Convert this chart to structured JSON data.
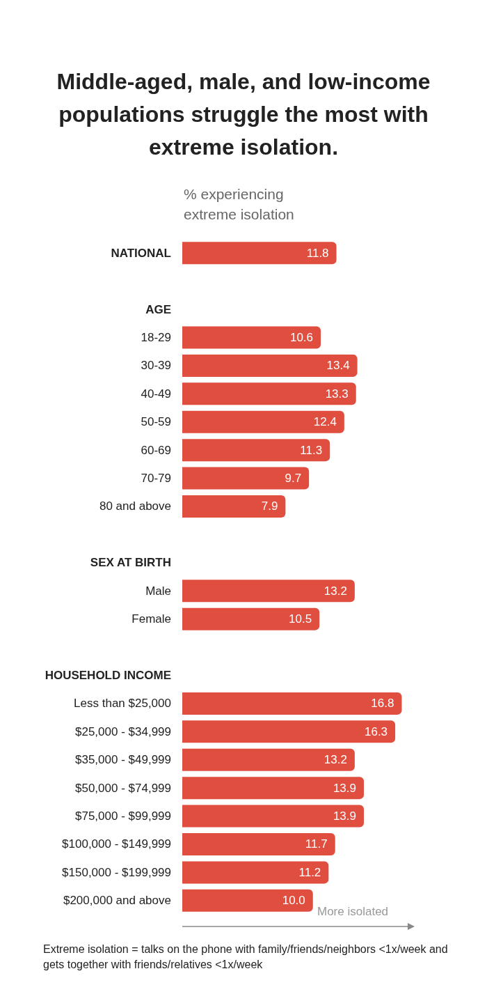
{
  "chart_data": {
    "type": "bar",
    "orientation": "horizontal",
    "title": "Middle-aged, male, and low-income populations struggle the most with extreme isolation.",
    "xlabel": "% experiencing extreme isolation",
    "categories": [
      "NATIONAL",
      null,
      "AGE",
      "18-29",
      "30-39",
      "40-49",
      "50-59",
      "60-69",
      "70-79",
      "80 and above",
      null,
      "SEX AT BIRTH",
      "Male",
      "Female",
      null,
      "HOUSEHOLD INCOME",
      "Less than $25,000",
      "$25,000 - $34,999",
      "$35,000 - $49,999",
      "$50,000 - $74,999",
      "$75,000 - $99,999",
      "$100,000 - $149,999",
      "$150,000 - $199,999",
      "$200,000 and above"
    ],
    "values": [
      11.8,
      null,
      null,
      10.6,
      13.4,
      13.3,
      12.4,
      11.3,
      9.7,
      7.9,
      null,
      null,
      13.2,
      10.5,
      null,
      null,
      16.8,
      16.3,
      13.2,
      13.9,
      13.9,
      11.7,
      11.2,
      10.0
    ],
    "value_labels": [
      "11.8",
      null,
      null,
      "10.6",
      "13.4",
      "13.3",
      "12.4",
      "11.3",
      "9.7",
      "7.9",
      null,
      null,
      "13.2",
      "10.5",
      null,
      null,
      "16.8",
      "16.3",
      "13.2",
      "13.9",
      "13.9",
      "11.7",
      "11.2",
      "10.0"
    ],
    "color": "#e04e3f",
    "annotations": [
      "More isolated",
      "Extreme isolation = talks on the phone with family/friends/neighbors <1x/week and gets together with friends/relatives <1x/week"
    ]
  }
}
